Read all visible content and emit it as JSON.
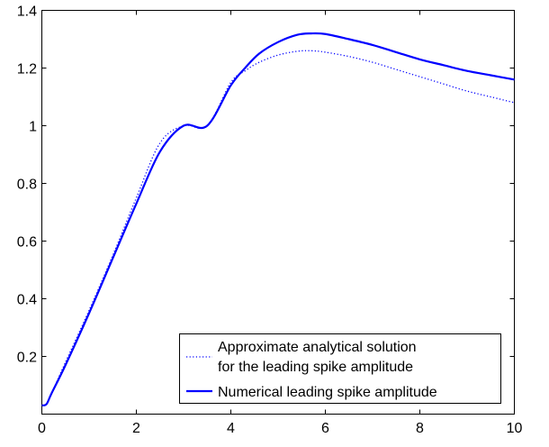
{
  "chart_data": {
    "type": "line",
    "title": "",
    "xlabel": "",
    "ylabel": "",
    "xlim": [
      0,
      10
    ],
    "ylim": [
      0,
      1.4
    ],
    "xticks": [
      0,
      2,
      4,
      6,
      8,
      10
    ],
    "yticks": [
      0.2,
      0.4,
      0.6,
      0.8,
      1,
      1.2,
      1.4
    ],
    "xtick_labels": [
      "0",
      "2",
      "4",
      "6",
      "8",
      "10"
    ],
    "ytick_labels": [
      "0.2",
      "0.4",
      "0.6",
      "0.8",
      "1",
      "1.2",
      "1.4"
    ],
    "grid": false,
    "legend_position": "bottom-right",
    "series": [
      {
        "name_lines": [
          "Approximate analytical solution",
          "for the leading spike amplitude"
        ],
        "style": "dotted",
        "color": "#0000ff",
        "x": [
          0,
          0.1,
          0.2,
          0.5,
          1,
          1.5,
          2,
          2.5,
          3,
          3.5,
          4,
          4.3,
          4.6,
          5,
          5.4,
          5.7,
          6,
          6.5,
          7,
          7.5,
          8,
          8.5,
          9,
          9.5,
          10
        ],
        "y": [
          0.03,
          0.035,
          0.07,
          0.18,
          0.36,
          0.55,
          0.75,
          0.94,
          1.0,
          1.0,
          1.15,
          1.19,
          1.22,
          1.245,
          1.258,
          1.26,
          1.255,
          1.24,
          1.22,
          1.195,
          1.17,
          1.145,
          1.12,
          1.1,
          1.08
        ]
      },
      {
        "name": "Numerical leading spike amplitude",
        "style": "solid",
        "color": "#0000ff",
        "x": [
          0,
          0.1,
          0.2,
          0.5,
          1,
          1.5,
          2,
          2.5,
          3,
          3.5,
          4,
          4.3,
          4.6,
          5,
          5.4,
          5.7,
          6,
          6.5,
          7,
          7.5,
          8,
          8.5,
          9,
          9.5,
          10
        ],
        "y": [
          0.03,
          0.035,
          0.07,
          0.17,
          0.35,
          0.54,
          0.73,
          0.91,
          1.0,
          1.0,
          1.14,
          1.2,
          1.25,
          1.29,
          1.315,
          1.32,
          1.318,
          1.3,
          1.28,
          1.255,
          1.23,
          1.21,
          1.19,
          1.175,
          1.16
        ]
      }
    ]
  }
}
